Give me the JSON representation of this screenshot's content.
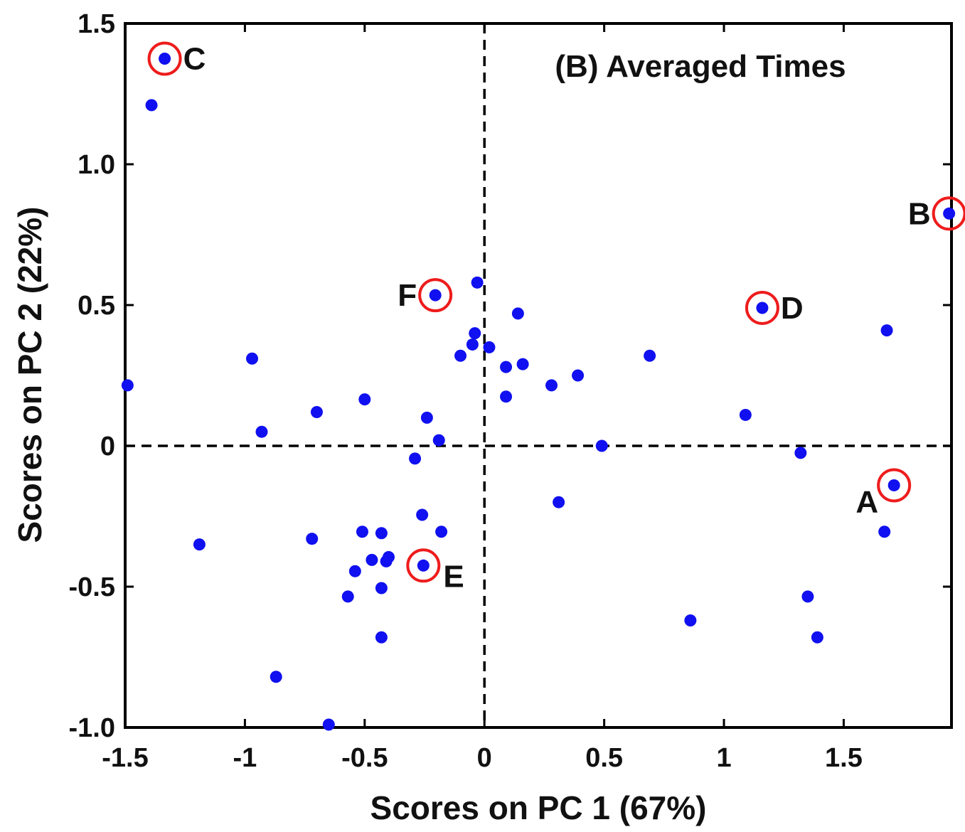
{
  "chart_data": {
    "type": "scatter",
    "title": "(B) Averaged Times",
    "xlabel": "Scores on PC 1 (67%)",
    "ylabel": "Scores on PC 2 (22%)",
    "xlim": [
      -1.5,
      1.95
    ],
    "ylim": [
      -1.0,
      1.5
    ],
    "xticks": [
      -1.5,
      -1,
      -0.5,
      0,
      0.5,
      1,
      1.5
    ],
    "xtick_labels": [
      "-1.5",
      "-1",
      "-0.5",
      "0",
      "0.5",
      "1",
      "1.5"
    ],
    "yticks": [
      -1.0,
      -0.5,
      0,
      0.5,
      1.0,
      1.5
    ],
    "ytick_labels": [
      "-1.0",
      "-0.5",
      "0",
      "0.5",
      "1.0",
      "1.5"
    ],
    "reference_lines": {
      "x": 0,
      "y": 0,
      "style": "dashed"
    },
    "grid": false,
    "point_color": "#1010f0",
    "highlight_color": "#ee1c1c",
    "series": [
      {
        "points": [
          [
            -1.335,
            1.375
          ],
          [
            -1.39,
            1.21
          ],
          [
            1.94,
            0.825
          ],
          [
            -0.205,
            0.535
          ],
          [
            -0.03,
            0.58
          ],
          [
            1.16,
            0.49
          ],
          [
            0.14,
            0.47
          ],
          [
            1.68,
            0.41
          ],
          [
            -0.04,
            0.4
          ],
          [
            -0.05,
            0.36
          ],
          [
            0.02,
            0.35
          ],
          [
            -0.1,
            0.32
          ],
          [
            -0.97,
            0.31
          ],
          [
            0.69,
            0.32
          ],
          [
            0.16,
            0.29
          ],
          [
            0.09,
            0.28
          ],
          [
            0.39,
            0.25
          ],
          [
            -1.49,
            0.215
          ],
          [
            0.28,
            0.215
          ],
          [
            0.09,
            0.175
          ],
          [
            -0.5,
            0.165
          ],
          [
            -0.7,
            0.12
          ],
          [
            -0.24,
            0.1
          ],
          [
            1.09,
            0.11
          ],
          [
            -0.93,
            0.05
          ],
          [
            -0.19,
            0.02
          ],
          [
            0.49,
            0.0
          ],
          [
            1.32,
            -0.025
          ],
          [
            -0.29,
            -0.045
          ],
          [
            1.71,
            -0.14
          ],
          [
            0.31,
            -0.2
          ],
          [
            -0.26,
            -0.245
          ],
          [
            1.67,
            -0.305
          ],
          [
            -0.51,
            -0.305
          ],
          [
            -0.43,
            -0.31
          ],
          [
            -0.18,
            -0.305
          ],
          [
            -0.72,
            -0.33
          ],
          [
            -1.19,
            -0.35
          ],
          [
            -0.47,
            -0.405
          ],
          [
            -0.4,
            -0.395
          ],
          [
            -0.41,
            -0.41
          ],
          [
            -0.255,
            -0.425
          ],
          [
            -0.54,
            -0.445
          ],
          [
            -0.43,
            -0.505
          ],
          [
            -0.57,
            -0.535
          ],
          [
            1.35,
            -0.535
          ],
          [
            0.86,
            -0.62
          ],
          [
            -0.43,
            -0.68
          ],
          [
            1.39,
            -0.68
          ],
          [
            -0.87,
            -0.82
          ],
          [
            -0.65,
            -0.99
          ]
        ]
      }
    ],
    "annotations": [
      {
        "label": "C",
        "x": -1.335,
        "y": 1.375,
        "side": "right"
      },
      {
        "label": "B",
        "x": 1.94,
        "y": 0.825,
        "side": "left"
      },
      {
        "label": "F",
        "x": -0.205,
        "y": 0.535,
        "side": "left"
      },
      {
        "label": "D",
        "x": 1.16,
        "y": 0.49,
        "side": "right"
      },
      {
        "label": "A",
        "x": 1.71,
        "y": -0.14,
        "side": "below-left"
      },
      {
        "label": "E",
        "x": -0.255,
        "y": -0.425,
        "side": "below-right"
      }
    ]
  }
}
